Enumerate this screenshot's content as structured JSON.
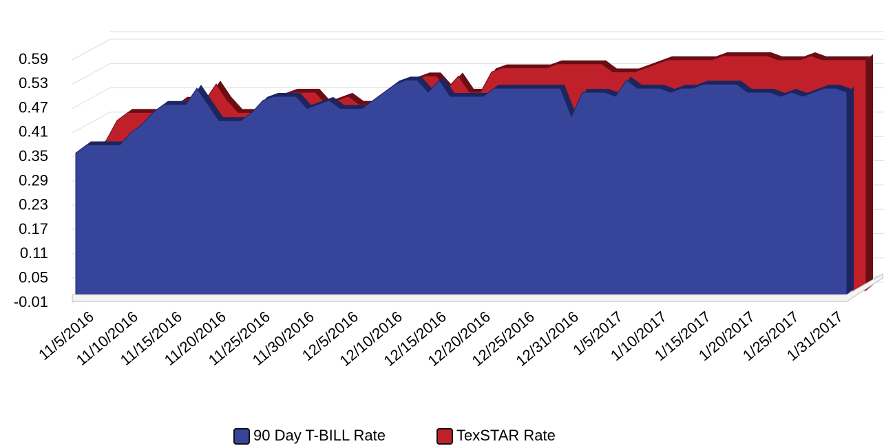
{
  "chart_data": {
    "type": "area3d",
    "categories": [
      null,
      "11/5/2016",
      null,
      null,
      null,
      "11/10/2016",
      null,
      null,
      null,
      "11/15/2016",
      null,
      null,
      null,
      "11/20/2016",
      null,
      null,
      null,
      "11/25/2016",
      null,
      null,
      null,
      "11/30/2016",
      null,
      null,
      null,
      "12/5/2016",
      null,
      null,
      null,
      "12/10/2016",
      null,
      null,
      null,
      "12/15/2016",
      null,
      null,
      null,
      "12/20/2016",
      null,
      null,
      null,
      "12/25/2016",
      null,
      null,
      null,
      "12/31/2016",
      null,
      null,
      null,
      "1/5/2017",
      null,
      null,
      null,
      "1/10/2017",
      null,
      null,
      null,
      "1/15/2017",
      null,
      null,
      null,
      "1/20/2017",
      null,
      null,
      null,
      "1/25/2017",
      null,
      null,
      null,
      "1/31/2017",
      null
    ],
    "series": [
      {
        "name": "90 Day T-BILL Rate",
        "color": "#36459a",
        "values": [
          0.36,
          0.38,
          0.38,
          0.38,
          0.38,
          0.41,
          0.43,
          0.46,
          0.48,
          0.48,
          0.48,
          0.52,
          0.48,
          0.44,
          0.44,
          0.44,
          0.46,
          0.49,
          0.5,
          0.5,
          0.5,
          0.47,
          0.48,
          0.49,
          0.47,
          0.47,
          0.47,
          0.49,
          0.51,
          0.53,
          0.54,
          0.54,
          0.51,
          0.54,
          0.5,
          0.5,
          0.5,
          0.5,
          0.52,
          0.52,
          0.52,
          0.52,
          0.52,
          0.52,
          0.52,
          0.45,
          0.51,
          0.51,
          0.51,
          0.5,
          0.54,
          0.52,
          0.52,
          0.52,
          0.51,
          0.52,
          0.52,
          0.53,
          0.53,
          0.53,
          0.53,
          0.51,
          0.51,
          0.51,
          0.5,
          0.51,
          0.5,
          0.51,
          0.52,
          0.52,
          0.51
        ]
      },
      {
        "name": "TexSTAR Rate",
        "color": "#c0202a",
        "values": [
          0.36,
          0.38,
          0.43,
          0.45,
          0.45,
          0.45,
          0.45,
          0.46,
          0.48,
          0.48,
          0.48,
          0.52,
          0.48,
          0.45,
          0.45,
          0.45,
          0.46,
          0.49,
          0.5,
          0.5,
          0.5,
          0.47,
          0.48,
          0.49,
          0.47,
          0.47,
          0.47,
          0.49,
          0.51,
          0.53,
          0.54,
          0.54,
          0.51,
          0.54,
          0.5,
          0.5,
          0.55,
          0.56,
          0.56,
          0.56,
          0.56,
          0.56,
          0.57,
          0.57,
          0.57,
          0.57,
          0.57,
          0.55,
          0.55,
          0.55,
          0.56,
          0.57,
          0.58,
          0.58,
          0.58,
          0.58,
          0.58,
          0.59,
          0.59,
          0.59,
          0.59,
          0.59,
          0.58,
          0.58,
          0.58,
          0.59,
          0.58,
          0.58,
          0.58,
          0.58,
          0.58
        ]
      }
    ],
    "ylim": [
      -0.01,
      0.65
    ],
    "yticks": [
      -0.01,
      0.05,
      0.11,
      0.17,
      0.23,
      0.29,
      0.35,
      0.41,
      0.47,
      0.53,
      0.59
    ],
    "grid": true,
    "legend": "bottom"
  }
}
